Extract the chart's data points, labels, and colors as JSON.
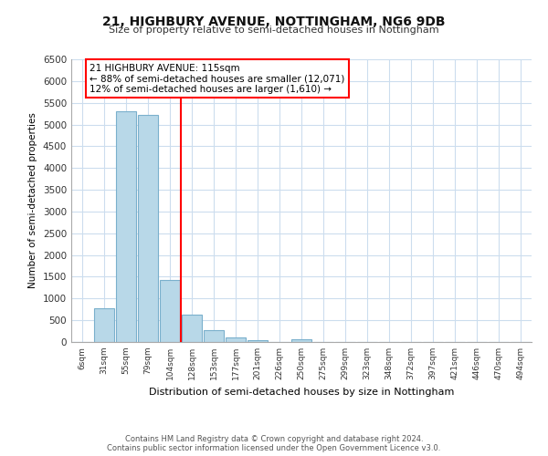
{
  "title": "21, HIGHBURY AVENUE, NOTTINGHAM, NG6 9DB",
  "subtitle": "Size of property relative to semi-detached houses in Nottingham",
  "xlabel": "Distribution of semi-detached houses by size in Nottingham",
  "ylabel": "Number of semi-detached properties",
  "categories": [
    "6sqm",
    "31sqm",
    "55sqm",
    "79sqm",
    "104sqm",
    "128sqm",
    "153sqm",
    "177sqm",
    "201sqm",
    "226sqm",
    "250sqm",
    "275sqm",
    "299sqm",
    "323sqm",
    "348sqm",
    "372sqm",
    "397sqm",
    "421sqm",
    "446sqm",
    "470sqm",
    "494sqm"
  ],
  "values": [
    0,
    770,
    5310,
    5230,
    1420,
    620,
    270,
    110,
    50,
    0,
    60,
    0,
    0,
    0,
    0,
    0,
    0,
    0,
    0,
    0,
    0
  ],
  "bar_color": "#b8d8e8",
  "bar_edge_color": "#7ab0cc",
  "vline_color": "red",
  "annotation_title": "21 HIGHBURY AVENUE: 115sqm",
  "annotation_line1": "← 88% of semi-detached houses are smaller (12,071)",
  "annotation_line2": "12% of semi-detached houses are larger (1,610) →",
  "ylim": [
    0,
    6500
  ],
  "yticks": [
    0,
    500,
    1000,
    1500,
    2000,
    2500,
    3000,
    3500,
    4000,
    4500,
    5000,
    5500,
    6000,
    6500
  ],
  "footnote1": "Contains HM Land Registry data © Crown copyright and database right 2024.",
  "footnote2": "Contains public sector information licensed under the Open Government Licence v3.0.",
  "background_color": "#ffffff",
  "grid_color": "#ccddee"
}
